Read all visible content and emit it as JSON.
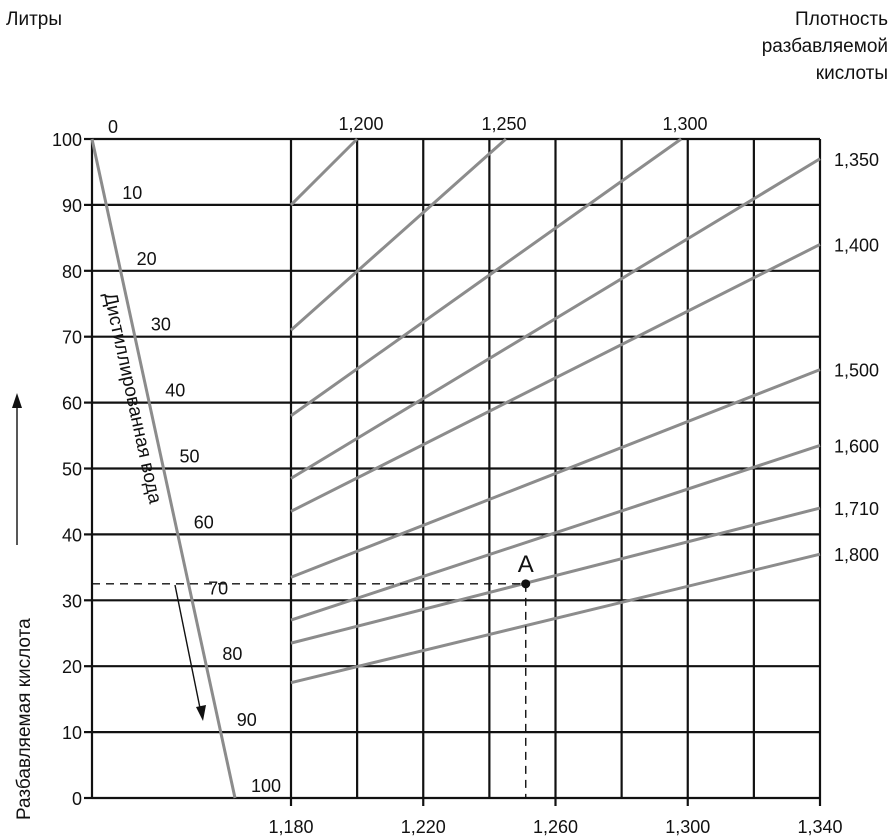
{
  "chart_data": {
    "type": "line",
    "y_unit_label": "Литры",
    "right_title": [
      "Плотность",
      "разбавляемой",
      "кислоты"
    ],
    "ylabel": "Разбавляемая кислота",
    "y_ticks": [
      "0",
      "10",
      "20",
      "30",
      "40",
      "50",
      "60",
      "70",
      "80",
      "90",
      "100"
    ],
    "x_ticks": [
      "1,180",
      "1,220",
      "1,260",
      "1,300",
      "1,340"
    ],
    "ylim": [
      0,
      100
    ],
    "xlim": [
      1.18,
      1.34
    ],
    "grid": true,
    "water_line": {
      "name": "Дистиллированная вода",
      "labels": [
        "0",
        "10",
        "20",
        "30",
        "40",
        "50",
        "60",
        "70",
        "80",
        "90",
        "100"
      ]
    },
    "series": [
      {
        "name": "1,200",
        "points": [
          [
            1.18,
            90
          ],
          [
            1.2,
            100
          ]
        ]
      },
      {
        "name": "1,250",
        "points": [
          [
            1.18,
            71
          ],
          [
            1.245,
            100
          ]
        ]
      },
      {
        "name": "1,300",
        "points": [
          [
            1.18,
            58
          ],
          [
            1.298,
            100
          ]
        ]
      },
      {
        "name": "1,350",
        "points": [
          [
            1.18,
            48.5
          ],
          [
            1.34,
            97
          ]
        ]
      },
      {
        "name": "1,400",
        "points": [
          [
            1.18,
            43.5
          ],
          [
            1.34,
            84
          ]
        ]
      },
      {
        "name": "1,500",
        "points": [
          [
            1.18,
            33.5
          ],
          [
            1.34,
            65
          ]
        ]
      },
      {
        "name": "1,600",
        "points": [
          [
            1.18,
            27
          ],
          [
            1.34,
            53.5
          ]
        ]
      },
      {
        "name": "1,710",
        "points": [
          [
            1.18,
            23.5
          ],
          [
            1.34,
            44
          ]
        ]
      },
      {
        "name": "1,800",
        "points": [
          [
            1.18,
            17.5
          ],
          [
            1.34,
            37
          ]
        ]
      }
    ],
    "annotation": {
      "label": "A",
      "x": 1.251,
      "y": 32.5
    }
  }
}
